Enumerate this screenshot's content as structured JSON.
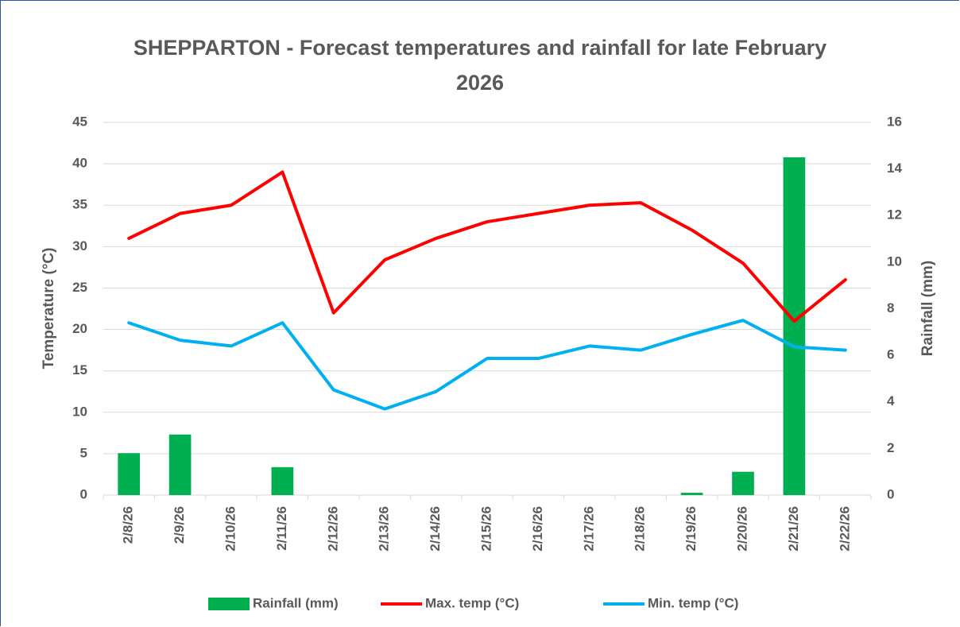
{
  "chart_data": {
    "type": "bar",
    "title": "SHEPPARTON - Forecast temperatures and rainfall for late February 2026",
    "y_label": "Temperature (°C)",
    "y2_label": "Rainfall (mm)",
    "categories": [
      "2/8/26",
      "2/9/26",
      "2/10/26",
      "2/11/26",
      "2/12/26",
      "2/13/26",
      "2/14/26",
      "2/15/26",
      "2/16/26",
      "2/17/26",
      "2/18/26",
      "2/19/26",
      "2/20/26",
      "2/21/26",
      "2/22/26"
    ],
    "series": [
      {
        "name": "Rainfall (mm)",
        "type": "bar",
        "axis": "y2",
        "color": "#00b050",
        "values": [
          1.8,
          2.6,
          0,
          1.2,
          0,
          0,
          0,
          0,
          0,
          0,
          0,
          0.1,
          1.0,
          14.5,
          0
        ]
      },
      {
        "name": "Max. temp (°C)",
        "type": "line",
        "color": "#ff0000",
        "values": [
          31,
          34,
          35,
          39,
          22,
          28.4,
          31,
          33,
          34,
          35,
          35.3,
          32,
          28,
          21,
          26
        ]
      },
      {
        "name": "Min. temp (°C)",
        "type": "line",
        "color": "#00b0f0",
        "values": [
          20.8,
          18.7,
          18,
          20.8,
          12.7,
          10.4,
          12.5,
          16.5,
          16.5,
          18,
          17.5,
          19.4,
          21.1,
          17.9,
          17.5
        ]
      }
    ],
    "ylim": [
      0,
      45
    ],
    "yticks": [
      0,
      5,
      10,
      15,
      20,
      25,
      30,
      35,
      40,
      45
    ],
    "y2lim": [
      0,
      16
    ],
    "y2ticks": [
      0,
      2,
      4,
      6,
      8,
      10,
      12,
      14,
      16
    ],
    "grid": true,
    "legend": "bottom"
  }
}
